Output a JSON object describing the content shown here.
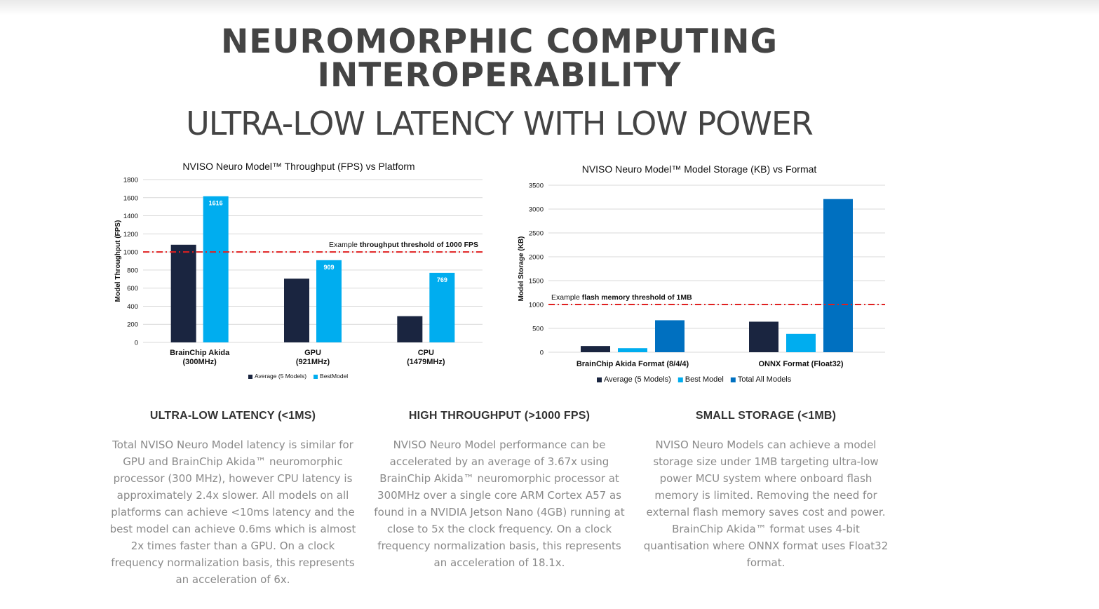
{
  "header": {
    "title_line1": "NEUROMORPHIC COMPUTING",
    "title_line2": "INTEROPERABILITY",
    "subtitle": "ULTRA-LOW LATENCY WITH LOW POWER"
  },
  "chart_data": [
    {
      "type": "bar",
      "title": "NVISO Neuro Model™ Throughput  (FPS) vs Platform",
      "xlabel": "",
      "ylabel": "Model Throughput (FPS)",
      "ylim": [
        0,
        1800
      ],
      "yticks": [
        0,
        200,
        400,
        600,
        800,
        1000,
        1200,
        1400,
        1600,
        1800
      ],
      "categories": [
        [
          "BrainChip Akida",
          "(300MHz)"
        ],
        [
          "GPU",
          "(921MHz)"
        ],
        [
          "CPU",
          "(1479MHz)"
        ]
      ],
      "series": [
        {
          "name": "Average (5  Models)",
          "color": "#1a2540",
          "values": [
            1080,
            705,
            290
          ],
          "labels": [
            "",
            "",
            ""
          ]
        },
        {
          "name": "BestModel",
          "color": "#00adef",
          "values": [
            1616,
            909,
            769
          ],
          "labels": [
            "1616",
            "909",
            "769"
          ]
        }
      ],
      "threshold": {
        "value": 1000,
        "color": "#e02020",
        "label_plain": "Example ",
        "label_bold": "throughput threshold of 1000 FPS"
      },
      "grid": true,
      "legend": "bottom"
    },
    {
      "type": "bar",
      "title": "NVISO Neuro Model™ Model Storage (KB) vs Format",
      "xlabel": "",
      "ylabel": "Model Storage (KB)",
      "ylim": [
        0,
        3500
      ],
      "yticks": [
        0,
        500,
        1000,
        1500,
        2000,
        2500,
        3000,
        3500
      ],
      "categories": [
        [
          "BrainChip Akida Format (8/4/4)"
        ],
        [
          "ONNX Format (Float32)"
        ]
      ],
      "series": [
        {
          "name": "Average (5 Models)",
          "color": "#1a2540",
          "values": [
            130,
            640
          ]
        },
        {
          "name": "Best Model",
          "color": "#00adef",
          "values": [
            85,
            385
          ]
        },
        {
          "name": "Total All Models",
          "color": "#0070c0",
          "values": [
            670,
            3210
          ]
        }
      ],
      "threshold": {
        "value": 1000,
        "color": "#e02020",
        "label_plain": "Example ",
        "label_bold": "flash memory threshold of 1MB"
      },
      "grid": true,
      "legend": "bottom"
    }
  ],
  "features": [
    {
      "heading": "ULTRA-LOW LATENCY (<1MS)",
      "lines": [
        "Total NVISO Neuro Model latency is similar for",
        "GPU and BrainChip Akida™ neuromorphic",
        "processor (300 MHz), however CPU latency is",
        "approximately 2.4x slower. All models on all",
        "platforms can achieve <10ms latency and the",
        "best model can achieve 0.6ms which is almost",
        "2x times faster than a GPU. On a clock",
        "frequency normalization basis, this represents",
        "an acceleration of 6x."
      ]
    },
    {
      "heading": "HIGH THROUGHPUT (>1000 FPS)",
      "lines": [
        "NVISO Neuro Model performance can be",
        "accelerated by an average of 3.67x using",
        "BrainChip Akida™ neuromorphic processor at",
        "300MHz over a single core ARM Cortex A57 as",
        "found in a NVIDIA Jetson Nano (4GB) running at",
        "close to 5x the clock frequency. On a clock",
        "frequency normalization basis, this represents",
        "an acceleration of 18.1x."
      ]
    },
    {
      "heading": "SMALL STORAGE (<1MB)",
      "lines": [
        "NVISO Neuro Models can achieve a model",
        "storage size under 1MB targeting ultra-low",
        "power MCU system where onboard flash",
        "memory is limited. Removing the need for",
        "external flash memory saves cost and power.",
        "BrainChip Akida™ format uses 4-bit",
        "quantisation where ONNX format uses Float32",
        "format."
      ]
    }
  ]
}
